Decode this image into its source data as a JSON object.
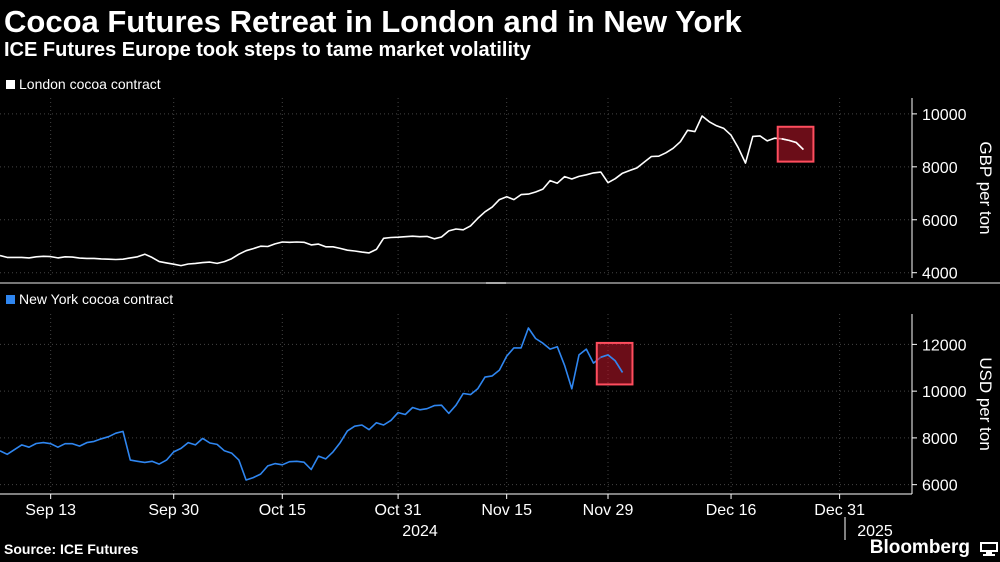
{
  "header": {
    "title": "Cocoa Futures Retreat in London and in New York",
    "subtitle": "ICE Futures Europe took steps to tame market volatility"
  },
  "footer": {
    "source": "Source: ICE Futures",
    "brand": "Bloomberg",
    "brand_icon": "bloomberg-terminal-icon"
  },
  "colors": {
    "background": "#000000",
    "london_line": "#ffffff",
    "new_york_line": "#2f86f0",
    "highlight_box_fill": "#c2182b",
    "highlight_box_stroke": "#ff4d5e",
    "grid": "#444444"
  },
  "chart_data": [
    {
      "type": "line",
      "title": "",
      "legend": "London cocoa contract",
      "legend_position": "top-left",
      "ylabel": "GBP per ton",
      "ylim": [
        3800,
        10600
      ],
      "yticks": [
        4000,
        6000,
        8000,
        10000
      ],
      "ytick_labels": [
        "4000",
        "6000",
        "8000",
        "10000"
      ],
      "grid": true,
      "series": [
        {
          "name": "London cocoa contract",
          "points": [
            [
              "2024-09-06",
              4650
            ],
            [
              "2024-09-07",
              4580
            ],
            [
              "2024-09-09",
              4580
            ],
            [
              "2024-09-10",
              4560
            ],
            [
              "2024-09-11",
              4600
            ],
            [
              "2024-09-12",
              4620
            ],
            [
              "2024-09-13",
              4610
            ],
            [
              "2024-09-14",
              4560
            ],
            [
              "2024-09-15",
              4600
            ],
            [
              "2024-09-16",
              4590
            ],
            [
              "2024-09-17",
              4550
            ],
            [
              "2024-09-18",
              4540
            ],
            [
              "2024-09-19",
              4540
            ],
            [
              "2024-09-20",
              4520
            ],
            [
              "2024-09-21",
              4510
            ],
            [
              "2024-09-22",
              4500
            ],
            [
              "2024-09-23",
              4510
            ],
            [
              "2024-09-24",
              4560
            ],
            [
              "2024-09-25",
              4600
            ],
            [
              "2024-09-26",
              4700
            ],
            [
              "2024-09-27",
              4580
            ],
            [
              "2024-09-28",
              4420
            ],
            [
              "2024-09-29",
              4370
            ],
            [
              "2024-09-30",
              4320
            ],
            [
              "2024-10-01",
              4270
            ],
            [
              "2024-10-02",
              4330
            ],
            [
              "2024-10-03",
              4350
            ],
            [
              "2024-10-04",
              4380
            ],
            [
              "2024-10-05",
              4400
            ],
            [
              "2024-10-06",
              4350
            ],
            [
              "2024-10-07",
              4420
            ],
            [
              "2024-10-08",
              4530
            ],
            [
              "2024-10-09",
              4700
            ],
            [
              "2024-10-10",
              4830
            ],
            [
              "2024-10-11",
              4910
            ],
            [
              "2024-10-12",
              5000
            ],
            [
              "2024-10-13",
              4990
            ],
            [
              "2024-10-14",
              5090
            ],
            [
              "2024-10-15",
              5160
            ],
            [
              "2024-10-16",
              5150
            ],
            [
              "2024-10-17",
              5160
            ],
            [
              "2024-10-18",
              5150
            ],
            [
              "2024-10-19",
              5050
            ],
            [
              "2024-10-20",
              5080
            ],
            [
              "2024-10-21",
              4980
            ],
            [
              "2024-10-22",
              4980
            ],
            [
              "2024-10-23",
              4920
            ],
            [
              "2024-10-24",
              4850
            ],
            [
              "2024-10-25",
              4820
            ],
            [
              "2024-10-26",
              4780
            ],
            [
              "2024-10-27",
              4750
            ],
            [
              "2024-10-28",
              4880
            ],
            [
              "2024-10-29",
              5300
            ],
            [
              "2024-10-30",
              5330
            ],
            [
              "2024-10-31",
              5340
            ],
            [
              "2024-11-01",
              5360
            ],
            [
              "2024-11-02",
              5380
            ],
            [
              "2024-11-03",
              5360
            ],
            [
              "2024-11-04",
              5370
            ],
            [
              "2024-11-05",
              5280
            ],
            [
              "2024-11-06",
              5350
            ],
            [
              "2024-11-07",
              5580
            ],
            [
              "2024-11-08",
              5650
            ],
            [
              "2024-11-09",
              5620
            ],
            [
              "2024-11-10",
              5770
            ],
            [
              "2024-11-11",
              6050
            ],
            [
              "2024-11-12",
              6300
            ],
            [
              "2024-11-13",
              6480
            ],
            [
              "2024-11-14",
              6760
            ],
            [
              "2024-11-15",
              6870
            ],
            [
              "2024-11-16",
              6760
            ],
            [
              "2024-11-17",
              6950
            ],
            [
              "2024-11-18",
              6970
            ],
            [
              "2024-11-19",
              7050
            ],
            [
              "2024-11-20",
              7160
            ],
            [
              "2024-11-21",
              7480
            ],
            [
              "2024-11-22",
              7380
            ],
            [
              "2024-11-23",
              7630
            ],
            [
              "2024-11-24",
              7540
            ],
            [
              "2024-11-25",
              7640
            ],
            [
              "2024-11-26",
              7700
            ],
            [
              "2024-11-27",
              7770
            ],
            [
              "2024-11-28",
              7800
            ],
            [
              "2024-11-29",
              7400
            ],
            [
              "2024-11-30",
              7550
            ],
            [
              "2024-12-01",
              7760
            ],
            [
              "2024-12-02",
              7860
            ],
            [
              "2024-12-03",
              7960
            ],
            [
              "2024-12-04",
              8180
            ],
            [
              "2024-12-05",
              8390
            ],
            [
              "2024-12-06",
              8400
            ],
            [
              "2024-12-07",
              8530
            ],
            [
              "2024-12-08",
              8700
            ],
            [
              "2024-12-09",
              8950
            ],
            [
              "2024-12-10",
              9380
            ],
            [
              "2024-12-11",
              9330
            ],
            [
              "2024-12-12",
              9920
            ],
            [
              "2024-12-13",
              9700
            ],
            [
              "2024-12-14",
              9550
            ],
            [
              "2024-12-15",
              9450
            ],
            [
              "2024-12-16",
              9200
            ],
            [
              "2024-12-17",
              8720
            ],
            [
              "2024-12-18",
              8140
            ],
            [
              "2024-12-19",
              9150
            ],
            [
              "2024-12-20",
              9170
            ],
            [
              "2024-12-21",
              8980
            ],
            [
              "2024-12-22",
              9080
            ],
            [
              "2024-12-23",
              9060
            ],
            [
              "2024-12-24",
              9000
            ],
            [
              "2024-12-25",
              8920
            ],
            [
              "2024-12-26",
              8650
            ]
          ]
        }
      ]
    },
    {
      "type": "line",
      "title": "",
      "legend": "New York cocoa contract",
      "legend_position": "top-left",
      "ylabel": "USD per ton",
      "ylim": [
        5600,
        13300
      ],
      "yticks": [
        6000,
        8000,
        10000,
        12000
      ],
      "ytick_labels": [
        "6000",
        "8000",
        "10000",
        "12000"
      ],
      "xticks": [
        "2024-09-13",
        "2024-09-30",
        "2024-10-15",
        "2024-10-31",
        "2024-11-15",
        "2024-11-29",
        "2024-12-16",
        "2024-12-31"
      ],
      "xtick_labels": [
        "Sep 13",
        "Sep 30",
        "Oct 15",
        "Oct 31",
        "Nov 15",
        "Nov 29",
        "Dec 16",
        "Dec 31"
      ],
      "year_labels": [
        "2024",
        "2025"
      ],
      "grid": true,
      "series": [
        {
          "name": "New York cocoa contract",
          "points": [
            [
              "2024-09-06",
              7450
            ],
            [
              "2024-09-07",
              7300
            ],
            [
              "2024-09-09",
              7700
            ],
            [
              "2024-09-10",
              7600
            ],
            [
              "2024-09-11",
              7760
            ],
            [
              "2024-09-12",
              7800
            ],
            [
              "2024-09-13",
              7750
            ],
            [
              "2024-09-14",
              7600
            ],
            [
              "2024-09-15",
              7750
            ],
            [
              "2024-09-16",
              7750
            ],
            [
              "2024-09-17",
              7650
            ],
            [
              "2024-09-18",
              7800
            ],
            [
              "2024-09-19",
              7850
            ],
            [
              "2024-09-20",
              7960
            ],
            [
              "2024-09-21",
              8050
            ],
            [
              "2024-09-22",
              8200
            ],
            [
              "2024-09-23",
              8280
            ],
            [
              "2024-09-24",
              7050
            ],
            [
              "2024-09-25",
              7000
            ],
            [
              "2024-09-26",
              6950
            ],
            [
              "2024-09-27",
              7000
            ],
            [
              "2024-09-28",
              6880
            ],
            [
              "2024-09-29",
              7050
            ],
            [
              "2024-09-30",
              7400
            ],
            [
              "2024-10-01",
              7550
            ],
            [
              "2024-10-02",
              7800
            ],
            [
              "2024-10-03",
              7700
            ],
            [
              "2024-10-04",
              7980
            ],
            [
              "2024-10-05",
              7780
            ],
            [
              "2024-10-06",
              7720
            ],
            [
              "2024-10-07",
              7450
            ],
            [
              "2024-10-08",
              7350
            ],
            [
              "2024-10-09",
              7050
            ],
            [
              "2024-10-10",
              6200
            ],
            [
              "2024-10-11",
              6300
            ],
            [
              "2024-10-12",
              6450
            ],
            [
              "2024-10-13",
              6800
            ],
            [
              "2024-10-14",
              6900
            ],
            [
              "2024-10-15",
              6850
            ],
            [
              "2024-10-16",
              6980
            ],
            [
              "2024-10-17",
              7000
            ],
            [
              "2024-10-18",
              6960
            ],
            [
              "2024-10-19",
              6650
            ],
            [
              "2024-10-20",
              7220
            ],
            [
              "2024-10-21",
              7100
            ],
            [
              "2024-10-22",
              7400
            ],
            [
              "2024-10-23",
              7800
            ],
            [
              "2024-10-24",
              8300
            ],
            [
              "2024-10-25",
              8500
            ],
            [
              "2024-10-26",
              8550
            ],
            [
              "2024-10-27",
              8350
            ],
            [
              "2024-10-28",
              8650
            ],
            [
              "2024-10-29",
              8550
            ],
            [
              "2024-10-30",
              8750
            ],
            [
              "2024-10-31",
              9080
            ],
            [
              "2024-11-01",
              9000
            ],
            [
              "2024-11-02",
              9300
            ],
            [
              "2024-11-03",
              9200
            ],
            [
              "2024-11-04",
              9250
            ],
            [
              "2024-11-05",
              9380
            ],
            [
              "2024-11-06",
              9400
            ],
            [
              "2024-11-07",
              9050
            ],
            [
              "2024-11-08",
              9400
            ],
            [
              "2024-11-09",
              9900
            ],
            [
              "2024-11-10",
              9850
            ],
            [
              "2024-11-11",
              10100
            ],
            [
              "2024-11-12",
              10600
            ],
            [
              "2024-11-13",
              10650
            ],
            [
              "2024-11-14",
              10900
            ],
            [
              "2024-11-15",
              11500
            ],
            [
              "2024-11-16",
              11850
            ],
            [
              "2024-11-17",
              11850
            ],
            [
              "2024-11-18",
              12700
            ],
            [
              "2024-11-19",
              12250
            ],
            [
              "2024-11-20",
              12050
            ],
            [
              "2024-11-21",
              11800
            ],
            [
              "2024-11-22",
              11900
            ],
            [
              "2024-11-23",
              11100
            ],
            [
              "2024-11-24",
              10100
            ],
            [
              "2024-11-25",
              11550
            ],
            [
              "2024-11-26",
              11800
            ],
            [
              "2024-11-27",
              11200
            ],
            [
              "2024-11-28",
              11450
            ],
            [
              "2024-11-29",
              11550
            ],
            [
              "2024-11-30",
              11300
            ],
            [
              "2024-12-01",
              10800
            ]
          ]
        }
      ]
    }
  ]
}
